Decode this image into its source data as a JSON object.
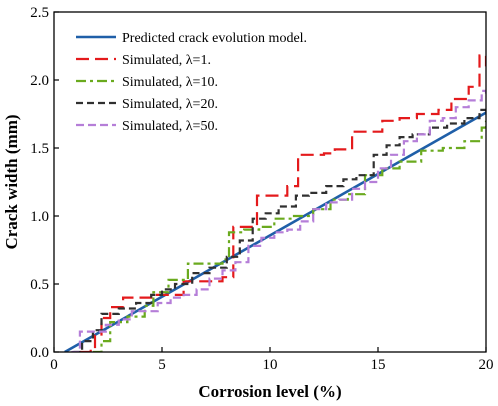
{
  "chart_data": {
    "type": "line",
    "xlabel": "Corrosion level (%)",
    "ylabel": "Crack width (mm)",
    "xlim": [
      0,
      20
    ],
    "ylim": [
      0,
      2.5
    ],
    "xticks": [
      0,
      5,
      10,
      15,
      20
    ],
    "xtick_labels": [
      "0",
      "5",
      "10",
      "15",
      "20"
    ],
    "yticks": [
      0,
      0.5,
      1.0,
      1.5,
      2.0,
      2.5
    ],
    "ytick_labels": [
      "0.0",
      "0.5",
      "1.0",
      "1.5",
      "2.0",
      "2.5"
    ],
    "grid": false,
    "legend_position": "top-left",
    "series": [
      {
        "name": "Predicted crack evolution model.",
        "color": "#1f5fa8",
        "dash": "solid",
        "x": [
          0.5,
          20
        ],
        "y": [
          0,
          1.76
        ]
      },
      {
        "name": "Simulated, λ=1.",
        "color": "#e41a1c",
        "dash": "long-dash",
        "x": [
          1.2,
          1.7,
          1.9,
          2.2,
          2.6,
          3.2,
          3.8,
          4.5,
          5.2,
          6.0,
          7.0,
          7.8,
          8.3,
          8.9,
          9.4,
          10.1,
          10.8,
          11.3,
          12.5,
          13.0,
          13.8,
          14.6,
          15.2,
          16.0,
          16.8,
          17.8,
          18.4,
          19.2,
          19.7,
          20.0
        ],
        "y": [
          0.0,
          0.02,
          0.12,
          0.25,
          0.33,
          0.4,
          0.4,
          0.42,
          0.42,
          0.52,
          0.52,
          0.55,
          0.92,
          0.92,
          1.15,
          1.15,
          1.22,
          1.45,
          1.46,
          1.49,
          1.62,
          1.62,
          1.7,
          1.72,
          1.75,
          1.78,
          1.86,
          1.95,
          2.18,
          2.1
        ]
      },
      {
        "name": "Simulated, λ=10.",
        "color": "#6aaa1e",
        "dash": "dash-dot",
        "x": [
          1.8,
          2.2,
          2.6,
          3.4,
          4.2,
          4.6,
          5.3,
          6.2,
          7.0,
          7.8,
          8.1,
          8.8,
          9.5,
          10.2,
          11.0,
          12.0,
          12.8,
          13.6,
          14.4,
          15.2,
          16.0,
          17.0,
          18.0,
          19.0,
          19.8,
          20.0
        ],
        "y": [
          0.0,
          0.08,
          0.22,
          0.26,
          0.34,
          0.44,
          0.53,
          0.65,
          0.65,
          0.68,
          0.88,
          0.9,
          0.92,
          0.98,
          1.0,
          1.05,
          1.12,
          1.16,
          1.3,
          1.35,
          1.4,
          1.48,
          1.5,
          1.55,
          1.65,
          1.7
        ]
      },
      {
        "name": "Simulated, λ=20.",
        "color": "#303030",
        "dash": "dash",
        "x": [
          0.9,
          1.3,
          1.8,
          2.2,
          3.0,
          3.8,
          4.5,
          5.0,
          5.6,
          6.4,
          7.2,
          8.0,
          8.6,
          9.2,
          9.8,
          10.4,
          11.2,
          11.8,
          12.6,
          13.4,
          14.0,
          14.8,
          15.4,
          16.0,
          16.6,
          17.4,
          18.2,
          19.0,
          19.7,
          20.0
        ],
        "y": [
          0.0,
          0.08,
          0.16,
          0.28,
          0.32,
          0.36,
          0.42,
          0.46,
          0.5,
          0.58,
          0.62,
          0.7,
          0.82,
          0.98,
          1.02,
          1.07,
          1.15,
          1.17,
          1.22,
          1.27,
          1.3,
          1.45,
          1.52,
          1.58,
          1.6,
          1.65,
          1.68,
          1.72,
          1.78,
          1.76
        ]
      },
      {
        "name": "Simulated, λ=50.",
        "color": "#b57ed8",
        "dash": "short-dash",
        "x": [
          0.8,
          1.2,
          1.8,
          2.4,
          3.0,
          3.6,
          4.2,
          4.8,
          5.4,
          6.0,
          6.6,
          7.2,
          7.8,
          8.4,
          9.0,
          9.6,
          10.2,
          10.8,
          11.4,
          12.0,
          12.6,
          13.2,
          13.8,
          14.4,
          15.0,
          15.6,
          16.2,
          16.8,
          17.4,
          18.0,
          18.6,
          19.2,
          19.8,
          20.0
        ],
        "y": [
          0.0,
          0.15,
          0.15,
          0.2,
          0.24,
          0.3,
          0.3,
          0.36,
          0.4,
          0.42,
          0.46,
          0.54,
          0.6,
          0.66,
          0.78,
          0.84,
          0.88,
          0.9,
          0.96,
          1.05,
          1.1,
          1.12,
          1.2,
          1.25,
          1.35,
          1.45,
          1.55,
          1.6,
          1.7,
          1.72,
          1.8,
          1.85,
          1.92,
          1.9
        ]
      }
    ]
  }
}
